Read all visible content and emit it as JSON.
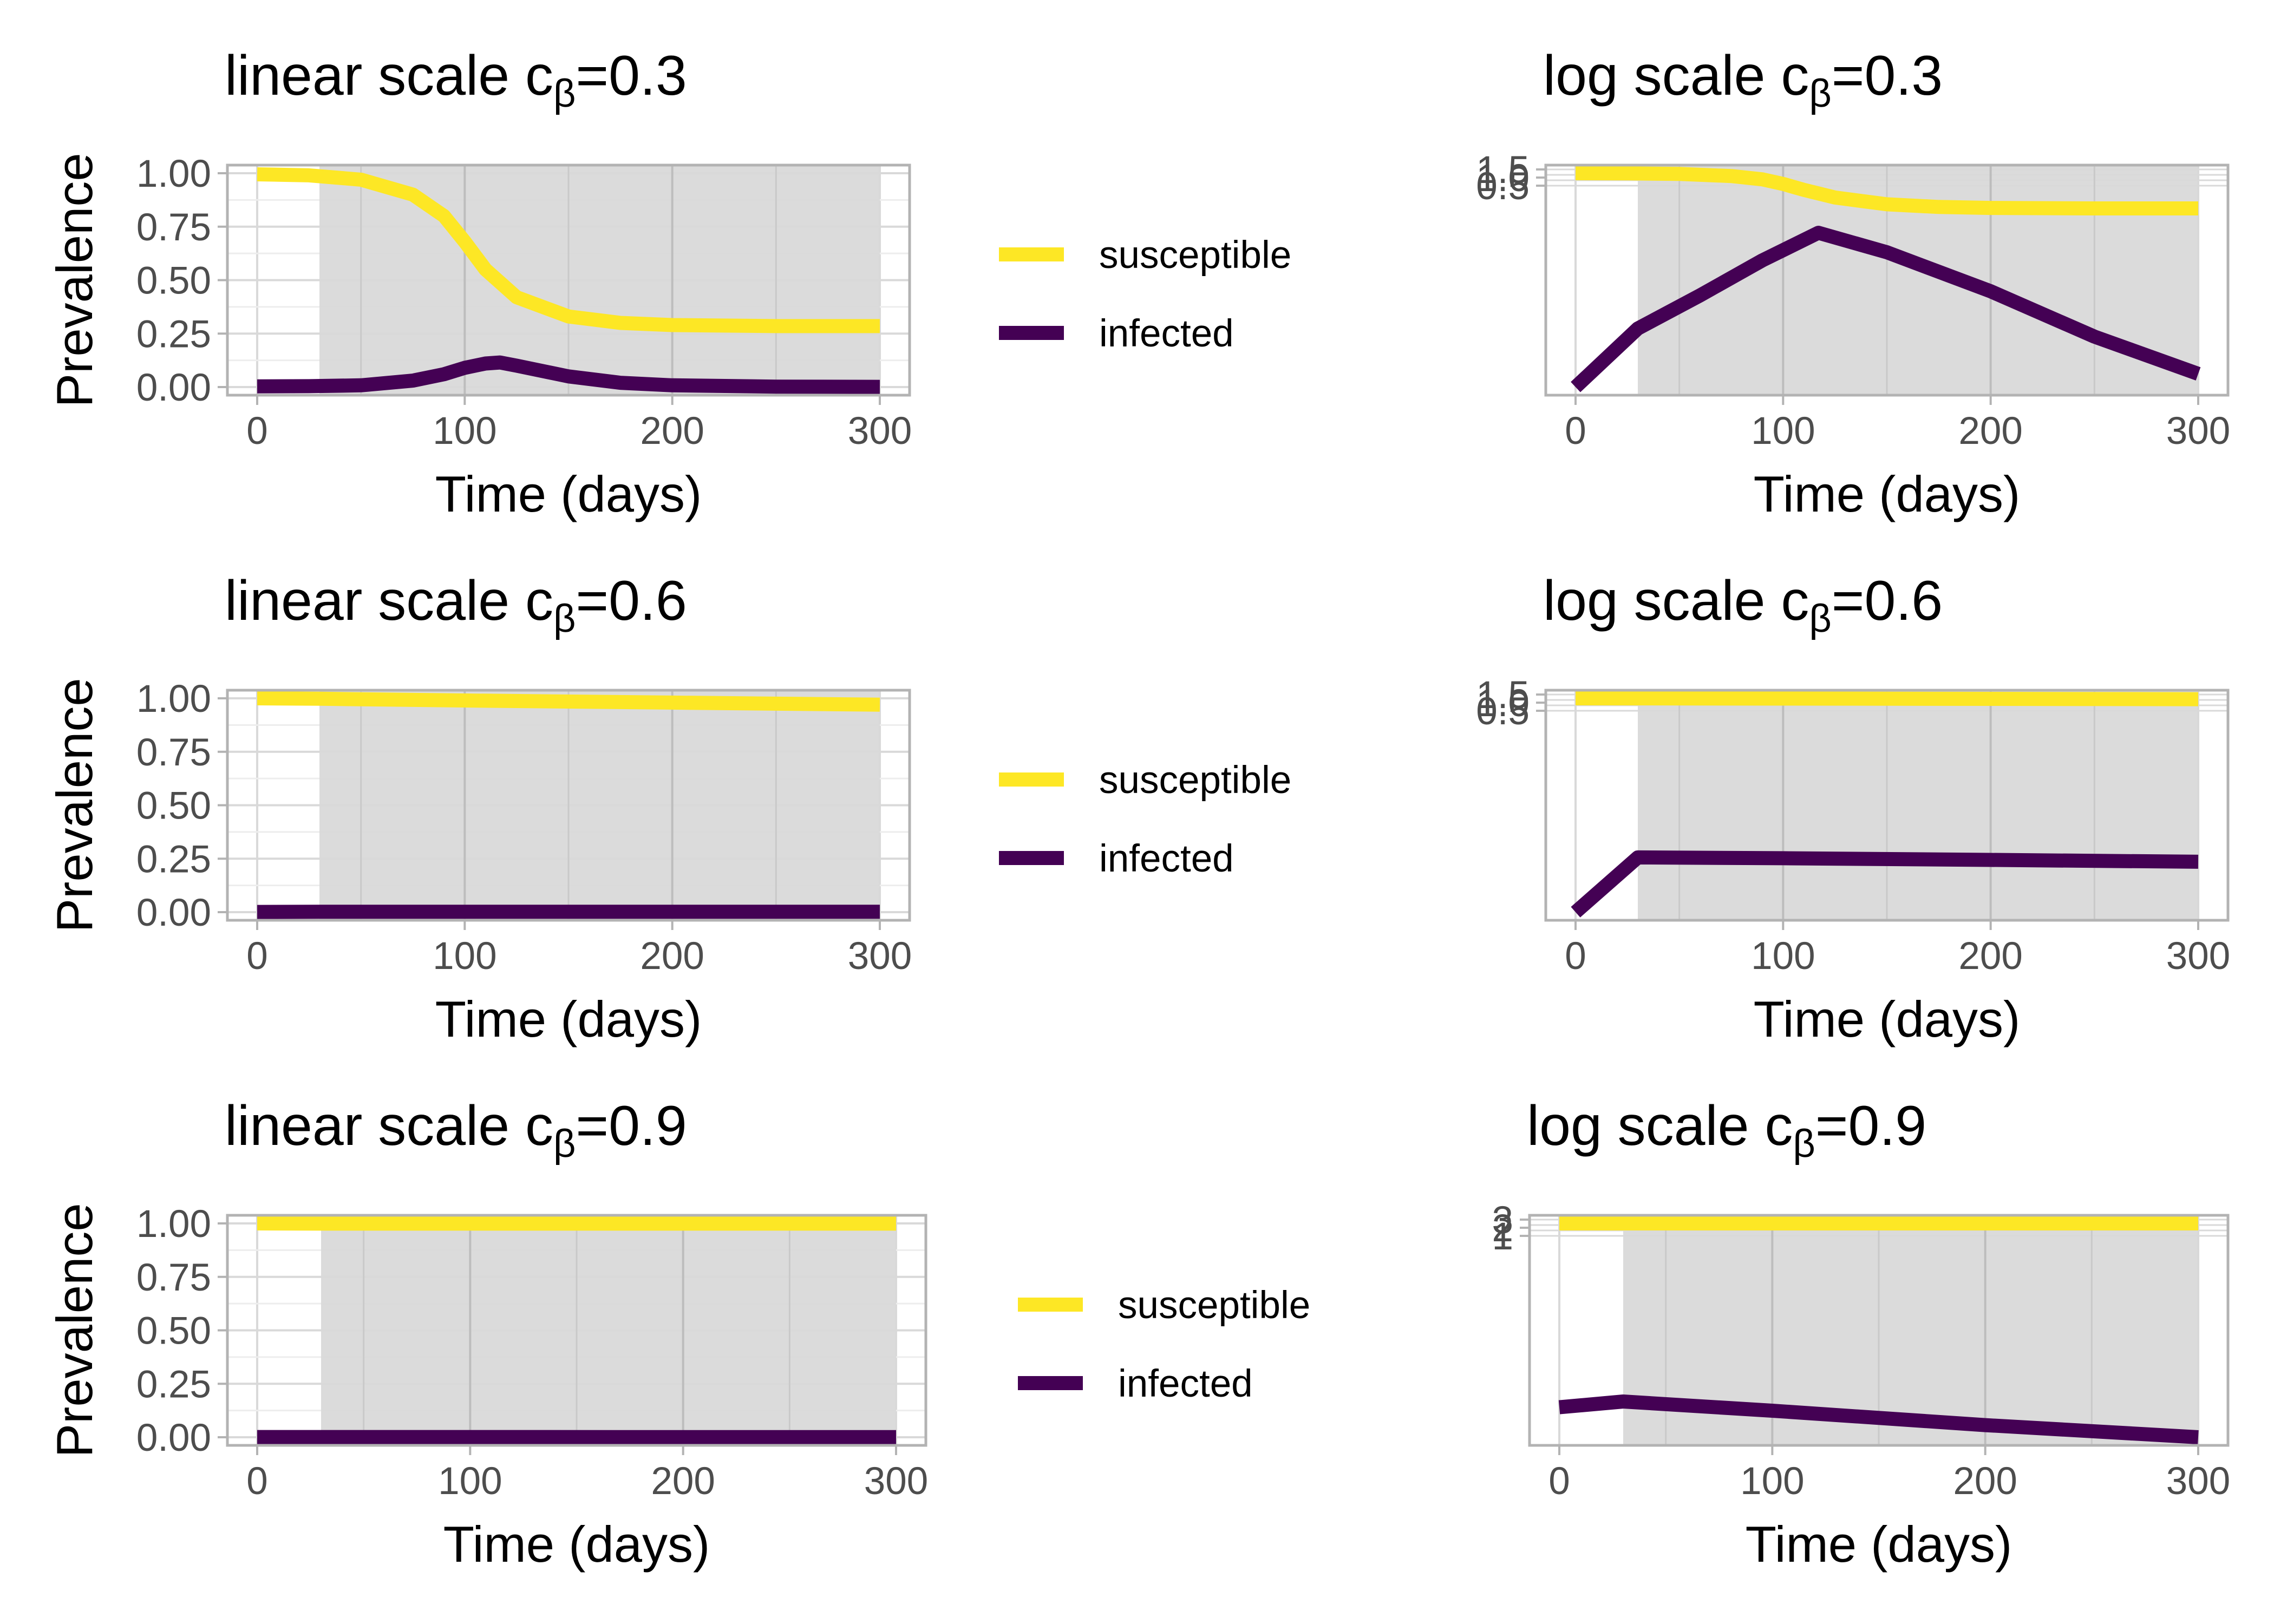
{
  "colors": {
    "susceptible": "#FDE725",
    "infected": "#440154",
    "panel_border": "#b3b3b3",
    "grid_major": "#d9d9d9",
    "grid_minor": "#ededed",
    "intervention_shade": "#d9d9d9"
  },
  "legend": {
    "entries": [
      {
        "key": "susceptible",
        "label": "susceptible"
      },
      {
        "key": "infected",
        "label": "infected"
      }
    ]
  },
  "chart_data": [
    {
      "type": "line",
      "scale": "linear",
      "title_text": "linear scale c",
      "title_subscript": "β",
      "title_suffix": "=0.3",
      "xlabel": "Time (days)",
      "ylabel": "Prevalence",
      "xlim": [
        0,
        300
      ],
      "ylim": [
        0,
        1
      ],
      "x_ticks": [
        "0",
        "100",
        "200",
        "300"
      ],
      "y_ticks": [
        "0.00",
        "0.25",
        "0.50",
        "0.75",
        "1.00"
      ],
      "shaded_x_range": [
        30,
        300
      ],
      "grid": true,
      "series": [
        {
          "name": "susceptible",
          "x": [
            0,
            25,
            50,
            75,
            90,
            100,
            110,
            125,
            150,
            175,
            200,
            250,
            300
          ],
          "y": [
            0.995,
            0.99,
            0.97,
            0.9,
            0.8,
            0.68,
            0.55,
            0.42,
            0.33,
            0.3,
            0.29,
            0.285,
            0.285
          ]
        },
        {
          "name": "infected",
          "x": [
            0,
            25,
            50,
            75,
            90,
            100,
            110,
            117,
            125,
            150,
            175,
            200,
            250,
            300
          ],
          "y": [
            0.003,
            0.004,
            0.008,
            0.03,
            0.06,
            0.09,
            0.11,
            0.115,
            0.1,
            0.05,
            0.02,
            0.008,
            0.002,
            0.001
          ]
        }
      ]
    },
    {
      "type": "line",
      "scale": "log",
      "title_text": "log scale c",
      "title_subscript": "β",
      "title_suffix": "=0.3",
      "xlabel": "Time (days)",
      "ylabel": "",
      "xlim": [
        0,
        300
      ],
      "x_ticks": [
        "0",
        "100",
        "200",
        "300"
      ],
      "y_ticks_cluster": [
        "1.5",
        "1.0",
        "0.5"
      ],
      "shaded_x_range": [
        30,
        300
      ],
      "grid": true,
      "series": [
        {
          "name": "susceptible",
          "x": [
            0,
            25,
            50,
            75,
            90,
            100,
            110,
            125,
            150,
            175,
            200,
            250,
            300
          ],
          "y": [
            0.995,
            0.99,
            0.97,
            0.9,
            0.8,
            0.68,
            0.55,
            0.42,
            0.33,
            0.3,
            0.29,
            0.285,
            0.285
          ]
        },
        {
          "name": "infected",
          "x": [
            0,
            30,
            60,
            90,
            117,
            150,
            200,
            250,
            300
          ],
          "y": [
            0.0005,
            0.004,
            0.013,
            0.045,
            0.12,
            0.06,
            0.015,
            0.003,
            0.0008
          ]
        }
      ]
    },
    {
      "type": "line",
      "scale": "linear",
      "title_text": "linear scale c",
      "title_subscript": "β",
      "title_suffix": "=0.6",
      "xlabel": "Time (days)",
      "ylabel": "Prevalence",
      "xlim": [
        0,
        300
      ],
      "ylim": [
        0,
        1
      ],
      "x_ticks": [
        "0",
        "100",
        "200",
        "300"
      ],
      "y_ticks": [
        "0.00",
        "0.25",
        "0.50",
        "0.75",
        "1.00"
      ],
      "shaded_x_range": [
        30,
        300
      ],
      "grid": true,
      "series": [
        {
          "name": "susceptible",
          "x": [
            0,
            30,
            100,
            200,
            300
          ],
          "y": [
            1.0,
            0.998,
            0.99,
            0.98,
            0.97
          ]
        },
        {
          "name": "infected",
          "x": [
            0,
            30,
            100,
            200,
            300
          ],
          "y": [
            0.001,
            0.002,
            0.002,
            0.002,
            0.002
          ]
        }
      ]
    },
    {
      "type": "line",
      "scale": "log",
      "title_text": "log scale c",
      "title_subscript": "β",
      "title_suffix": "=0.6",
      "xlabel": "Time (days)",
      "ylabel": "",
      "xlim": [
        0,
        300
      ],
      "x_ticks": [
        "0",
        "100",
        "200",
        "300"
      ],
      "y_ticks_cluster": [
        "1.5",
        "1.0",
        "0.5"
      ],
      "shaded_x_range": [
        30,
        300
      ],
      "grid": true,
      "series": [
        {
          "name": "susceptible",
          "x": [
            0,
            30,
            100,
            200,
            300
          ],
          "y": [
            1.0,
            0.998,
            0.99,
            0.98,
            0.97
          ]
        },
        {
          "name": "infected",
          "x": [
            0,
            30,
            100,
            200,
            300
          ],
          "y": [
            0.0005,
            0.0035,
            0.0034,
            0.0032,
            0.003
          ]
        }
      ]
    },
    {
      "type": "line",
      "scale": "linear",
      "title_text": "linear scale c",
      "title_subscript": "β",
      "title_suffix": "=0.9",
      "xlabel": "Time (days)",
      "ylabel": "Prevalence",
      "xlim": [
        0,
        300
      ],
      "ylim": [
        0,
        1
      ],
      "x_ticks": [
        "0",
        "100",
        "200",
        "300"
      ],
      "y_ticks": [
        "0.00",
        "0.25",
        "0.50",
        "0.75",
        "1.00"
      ],
      "shaded_x_range": [
        30,
        300
      ],
      "grid": true,
      "series": [
        {
          "name": "susceptible",
          "x": [
            0,
            30,
            300
          ],
          "y": [
            1.0,
            0.999,
            0.999
          ]
        },
        {
          "name": "infected",
          "x": [
            0,
            30,
            300
          ],
          "y": [
            0.001,
            0.001,
            0.0005
          ]
        }
      ]
    },
    {
      "type": "line",
      "scale": "log",
      "title_text": "log scale c",
      "title_subscript": "β",
      "title_suffix": "=0.9",
      "xlabel": "Time (days)",
      "ylabel": "",
      "xlim": [
        0,
        300
      ],
      "x_ticks": [
        "0",
        "100",
        "200",
        "300"
      ],
      "y_ticks_cluster": [
        "3",
        "2",
        "1"
      ],
      "shaded_x_range": [
        30,
        300
      ],
      "grid": true,
      "series": [
        {
          "name": "susceptible",
          "x": [
            0,
            30,
            300
          ],
          "y": [
            1.0,
            0.999,
            0.999
          ]
        },
        {
          "name": "infected",
          "x": [
            0,
            30,
            100,
            200,
            300
          ],
          "y": [
            0.0008,
            0.001,
            0.0007,
            0.0004,
            0.00025
          ]
        }
      ]
    }
  ]
}
